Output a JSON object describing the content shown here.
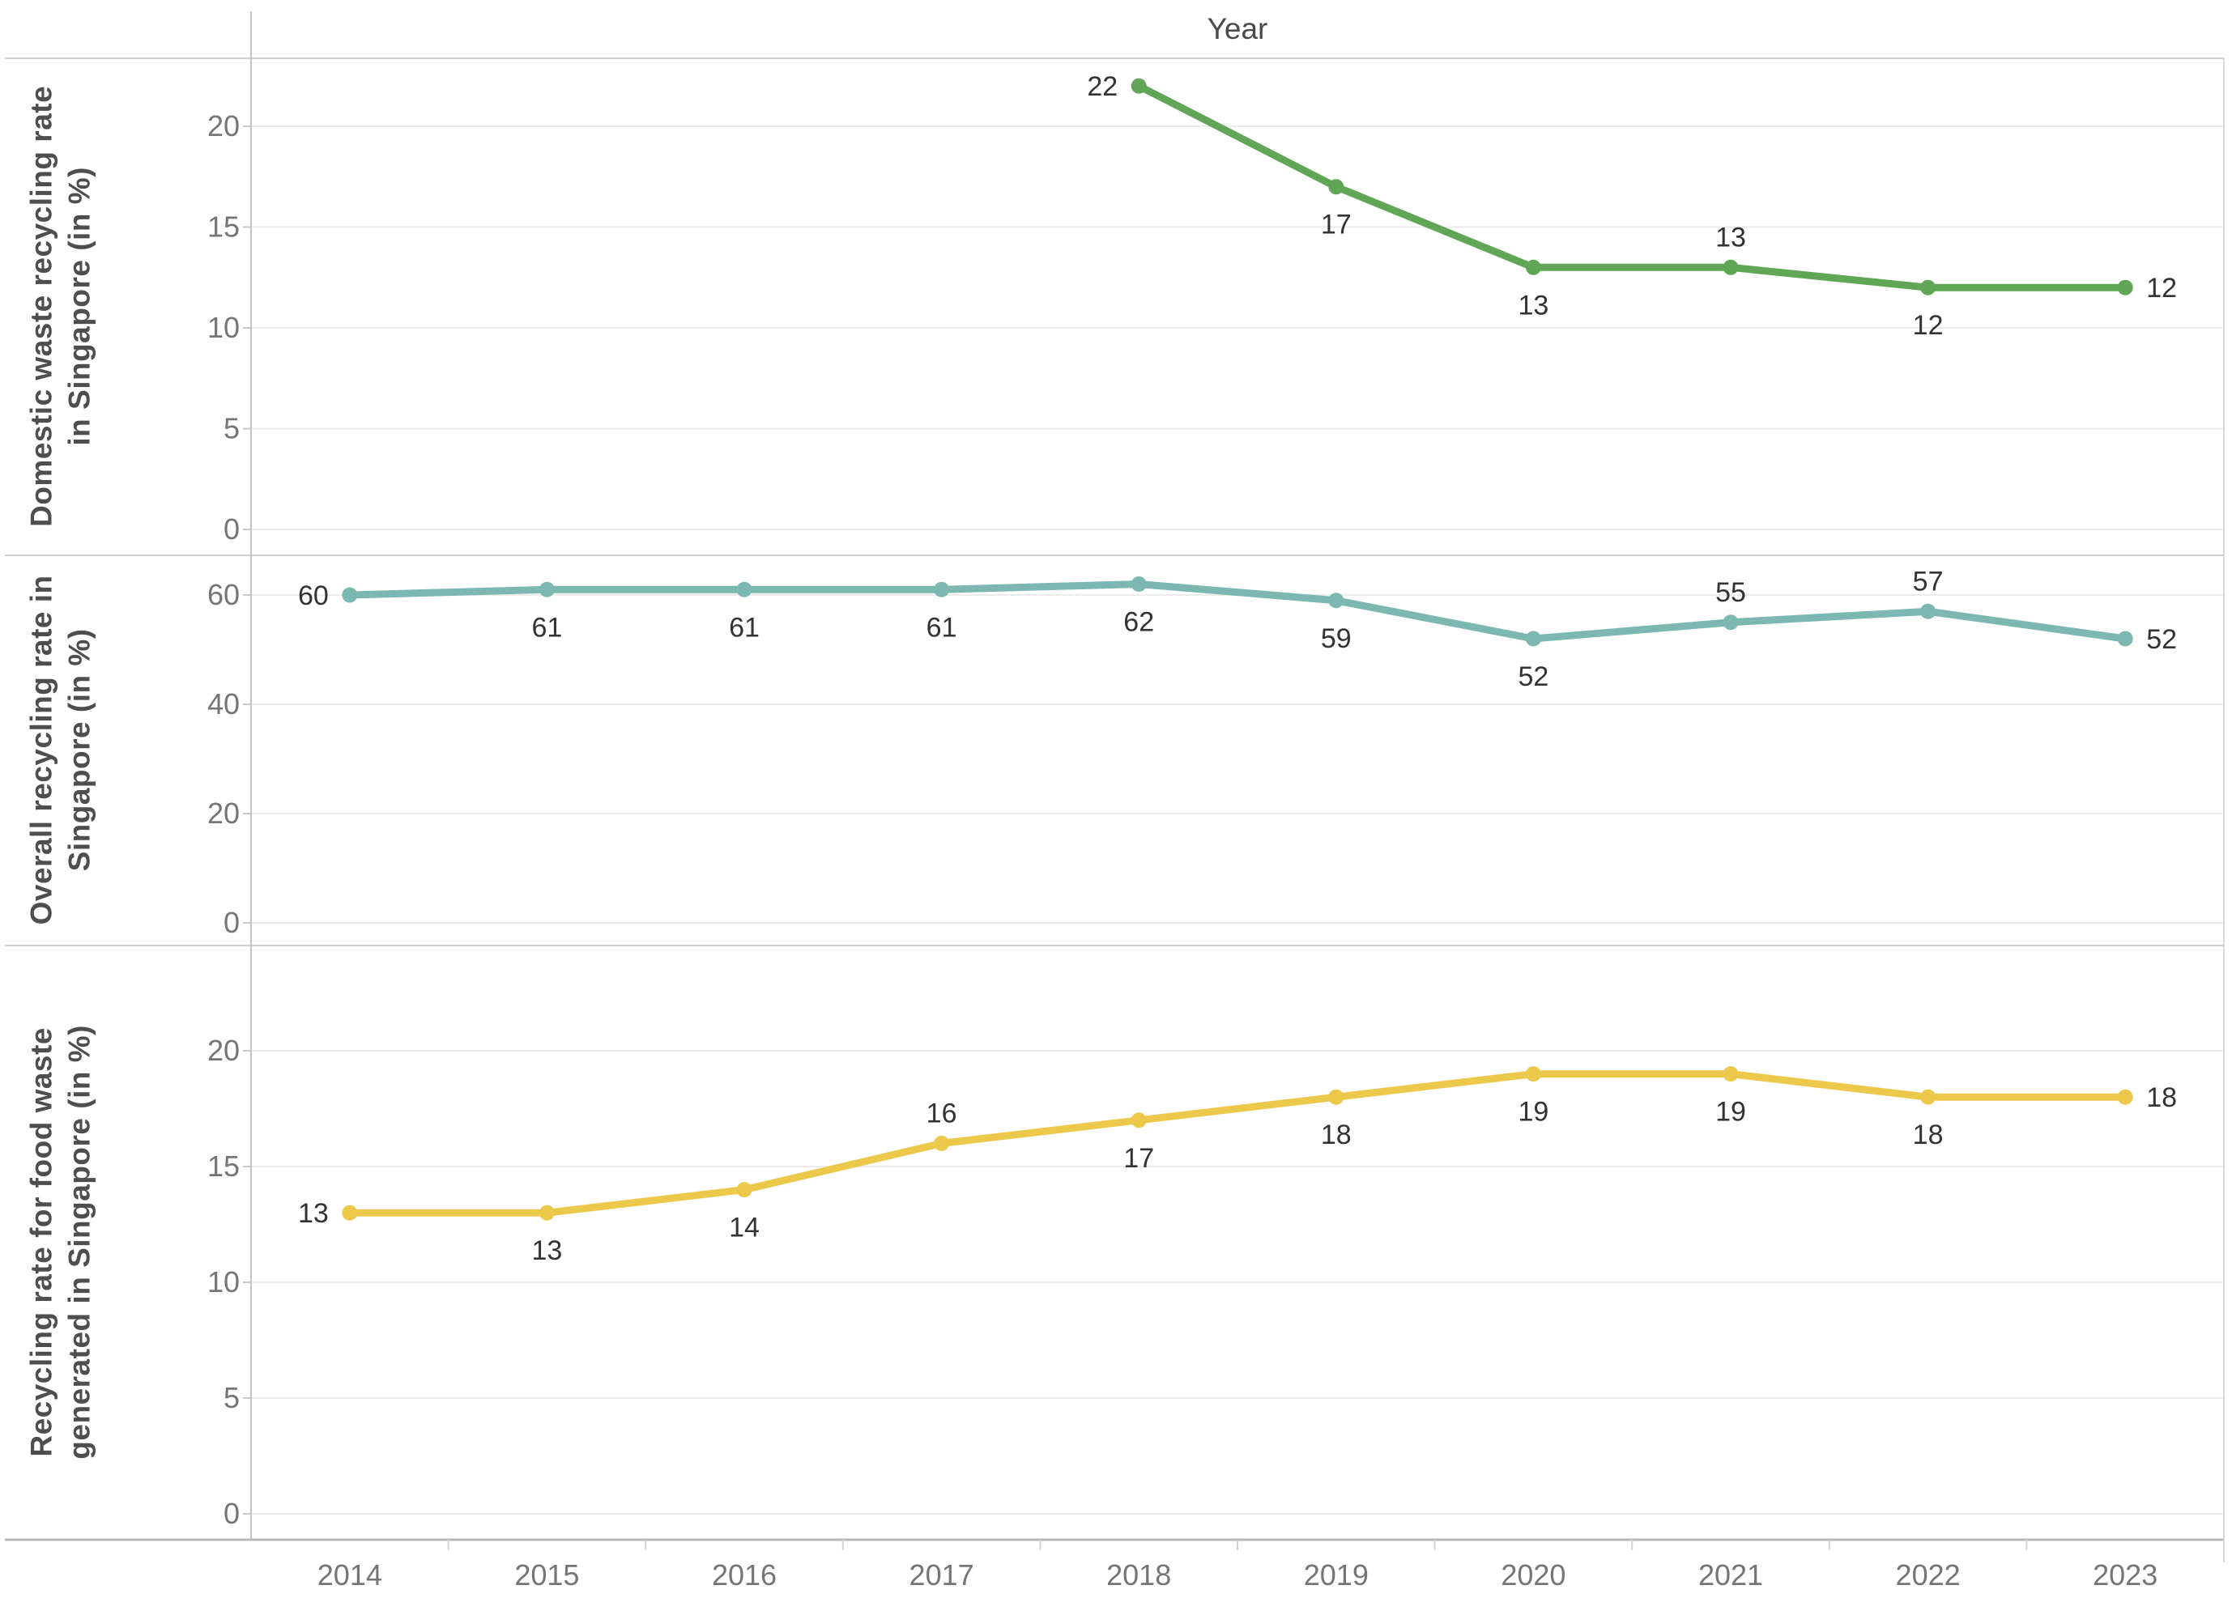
{
  "header": {
    "x_axis_title": "Year"
  },
  "x_axis": {
    "years": [
      "2014",
      "2015",
      "2016",
      "2017",
      "2018",
      "2019",
      "2020",
      "2021",
      "2022",
      "2023"
    ]
  },
  "chart_data": {
    "type": "line",
    "x_title": "Year",
    "x": [
      "2014",
      "2015",
      "2016",
      "2017",
      "2018",
      "2019",
      "2020",
      "2021",
      "2022",
      "2023"
    ],
    "grid": true,
    "panels": [
      {
        "title": "Domestic waste recycling rate\nin Singapore (in %)",
        "color": "#61a656",
        "ylim": [
          0,
          23.4
        ],
        "yticks": [
          0,
          5,
          10,
          15,
          20
        ],
        "values": [
          null,
          null,
          null,
          null,
          22,
          17,
          13,
          13,
          12,
          12
        ],
        "label_placement": [
          null,
          null,
          null,
          null,
          "left",
          "below",
          "below",
          "above",
          "below",
          "right"
        ]
      },
      {
        "title": "Overall recycling rate in\nSingapore (in %)",
        "color": "#7cb8b1",
        "ylim": [
          0,
          67
        ],
        "yticks": [
          0,
          20,
          40,
          60
        ],
        "values": [
          60,
          61,
          61,
          61,
          62,
          59,
          52,
          55,
          57,
          52
        ],
        "label_placement": [
          "left",
          "below",
          "below",
          "below",
          "below",
          "below",
          "below",
          "above",
          "above",
          "right"
        ]
      },
      {
        "title": "Recycling rate for food waste\ngenerated in Singapore (in %)",
        "color": "#edc94b",
        "ylim": [
          0,
          24.5
        ],
        "yticks": [
          0,
          5,
          10,
          15,
          20
        ],
        "values": [
          13,
          13,
          14,
          16,
          17,
          18,
          19,
          19,
          18,
          18
        ],
        "label_placement": [
          "left",
          "below",
          "below",
          "above",
          "below",
          "below",
          "below",
          "below",
          "below",
          "right"
        ]
      }
    ],
    "colors": {
      "domestic_line": "#61a656",
      "overall_line": "#7cb8b1",
      "food_waste_line": "#edc94b",
      "gridline": "#ececec",
      "panel_border": "#cfcfcf",
      "axis_line": "#b8b8b8",
      "tick_label": "#757575",
      "data_label": "#333333"
    }
  }
}
